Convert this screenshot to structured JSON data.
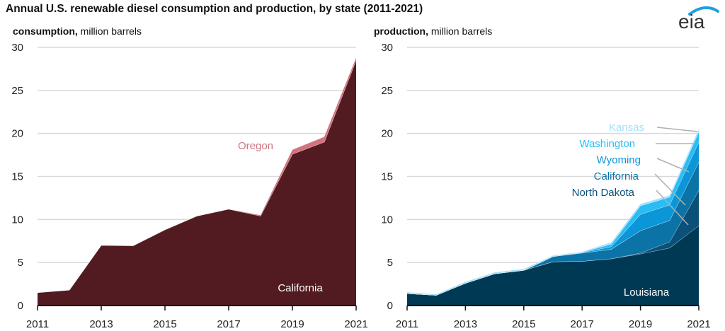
{
  "title": "Annual U.S. renewable diesel consumption and production, by state (2011-2021)",
  "logo": {
    "text": "eia",
    "arc_color": "#1ba0e2",
    "text_color": "#333333"
  },
  "chart_data": [
    {
      "type": "area",
      "stacked": true,
      "subtitle_bold": "consumption,",
      "subtitle_rest": "million barrels",
      "x": [
        2011,
        2012,
        2013,
        2014,
        2015,
        2016,
        2017,
        2018,
        2019,
        2020,
        2021
      ],
      "x_tick_labels": [
        "2011",
        "2013",
        "2015",
        "2017",
        "2019",
        "2021"
      ],
      "y_tick_labels": [
        "0",
        "5",
        "10",
        "15",
        "20",
        "25",
        "30"
      ],
      "ylim": [
        0,
        30
      ],
      "grid": true,
      "xlabel": "",
      "ylabel": "",
      "series": [
        {
          "name": "California",
          "color": "#521b21",
          "label_color": "#ffffff",
          "values": [
            1.5,
            1.8,
            7.0,
            6.95,
            8.8,
            10.4,
            11.2,
            10.4,
            17.6,
            19.0,
            28.5
          ]
        },
        {
          "name": "Oregon",
          "color": "#d3737f",
          "label_color": "#d3737f",
          "values": [
            0,
            0,
            0,
            0,
            0,
            0,
            0,
            0.1,
            0.5,
            0.6,
            0.3
          ]
        }
      ]
    },
    {
      "type": "area",
      "stacked": true,
      "subtitle_bold": "production,",
      "subtitle_rest": "million barrels",
      "x": [
        2011,
        2012,
        2013,
        2014,
        2015,
        2016,
        2017,
        2018,
        2019,
        2020,
        2021
      ],
      "x_tick_labels": [
        "2011",
        "2013",
        "2015",
        "2017",
        "2019",
        "2021"
      ],
      "y_tick_labels": [
        "0",
        "5",
        "10",
        "15",
        "20",
        "25",
        "30"
      ],
      "ylim": [
        0,
        30
      ],
      "grid": true,
      "xlabel": "",
      "ylabel": "",
      "series": [
        {
          "name": "Louisiana",
          "color": "#003953",
          "label_color": "#ffffff",
          "values": [
            1.4,
            1.2,
            2.6,
            3.7,
            4.1,
            5.1,
            5.15,
            5.45,
            6.0,
            6.7,
            9.3
          ]
        },
        {
          "name": "North Dakota",
          "color": "#0a5078",
          "label_color": "#0a5078",
          "values": [
            0,
            0,
            0,
            0,
            0,
            0,
            0,
            0,
            0.1,
            0.7,
            4.1
          ]
        },
        {
          "name": "California",
          "color": "#0b73a6",
          "label_color": "#0b73a6",
          "values": [
            0,
            0,
            0,
            0,
            0,
            0.6,
            0.95,
            1.1,
            2.6,
            2.5,
            3.3
          ]
        },
        {
          "name": "Wyoming",
          "color": "#0b96d8",
          "label_color": "#0b96d8",
          "values": [
            0,
            0,
            0,
            0,
            0,
            0,
            0.05,
            0.3,
            1.9,
            1.8,
            2.3
          ]
        },
        {
          "name": "Washington",
          "color": "#2bbcf5",
          "label_color": "#2bbcf5",
          "values": [
            0,
            0,
            0,
            0,
            0,
            0,
            0.05,
            0.3,
            1.0,
            0.9,
            1.2
          ]
        },
        {
          "name": "Kansas",
          "color": "#a6e0fb",
          "label_color": "#a6e0fb",
          "values": [
            0.15,
            0.1,
            0.15,
            0.15,
            0.15,
            0.1,
            0.05,
            0.2,
            0.2,
            0.2,
            0.3
          ]
        }
      ]
    }
  ]
}
